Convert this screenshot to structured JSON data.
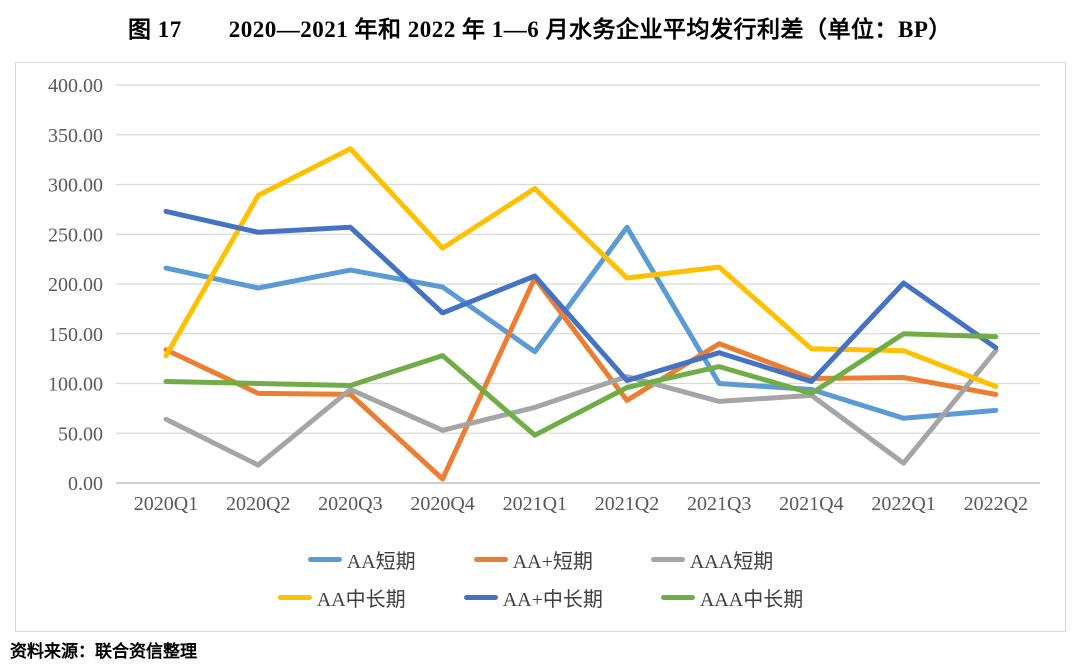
{
  "title": "图 17　　2020—2021 年和 2022 年 1—6 月水务企业平均发行利差（单位：BP）",
  "source_note": "资料来源：联合资信整理",
  "colors": {
    "aa_short": "#5B9BD5",
    "aa_plus_short": "#ED7D31",
    "aaa_short": "#A5A5A5",
    "aa_mid_long": "#FFC000",
    "aa_plus_mid_long": "#4472C4",
    "aaa_mid_long": "#70AD47",
    "gridline": "#D9D9D9",
    "axis_baseline": "#BFBFBF",
    "axis_text": "#595959"
  },
  "chart_data": {
    "type": "line",
    "title": "图 17　2020—2021 年和 2022 年 1—6 月水务企业平均发行利差（单位：BP）",
    "xlabel": "",
    "ylabel": "",
    "ylim": [
      0,
      400
    ],
    "ytick_step": 50,
    "ytick_decimals": 2,
    "grid": "horizontal",
    "legend_position": "bottom",
    "categories": [
      "2020Q1",
      "2020Q2",
      "2020Q3",
      "2020Q4",
      "2021Q1",
      "2021Q2",
      "2021Q3",
      "2021Q4",
      "2022Q1",
      "2022Q2"
    ],
    "series": [
      {
        "name": "AA短期",
        "color": "#5B9BD5",
        "values": [
          216,
          196,
          214,
          197,
          132,
          257,
          100,
          94,
          65,
          73
        ]
      },
      {
        "name": "AA+短期",
        "color": "#ED7D31",
        "values": [
          134,
          90,
          89,
          4,
          206,
          83,
          140,
          105,
          106,
          89
        ]
      },
      {
        "name": "AAA短期",
        "color": "#A5A5A5",
        "values": [
          64,
          18,
          94,
          53,
          76,
          107,
          82,
          88,
          20,
          133
        ]
      },
      {
        "name": "AA中长期",
        "color": "#FFC000",
        "values": [
          128,
          289,
          336,
          236,
          296,
          206,
          217,
          135,
          133,
          97
        ]
      },
      {
        "name": "AA+中长期",
        "color": "#4472C4",
        "values": [
          273,
          252,
          257,
          171,
          208,
          103,
          131,
          102,
          201,
          136
        ]
      },
      {
        "name": "AAA中长期",
        "color": "#70AD47",
        "values": [
          102,
          100,
          98,
          128,
          48,
          96,
          117,
          90,
          150,
          147
        ]
      }
    ],
    "legend_rows": [
      [
        "AA短期",
        "AA+短期",
        "AAA短期"
      ],
      [
        "AA中长期",
        "AA+中长期",
        "AAA中长期"
      ]
    ]
  }
}
